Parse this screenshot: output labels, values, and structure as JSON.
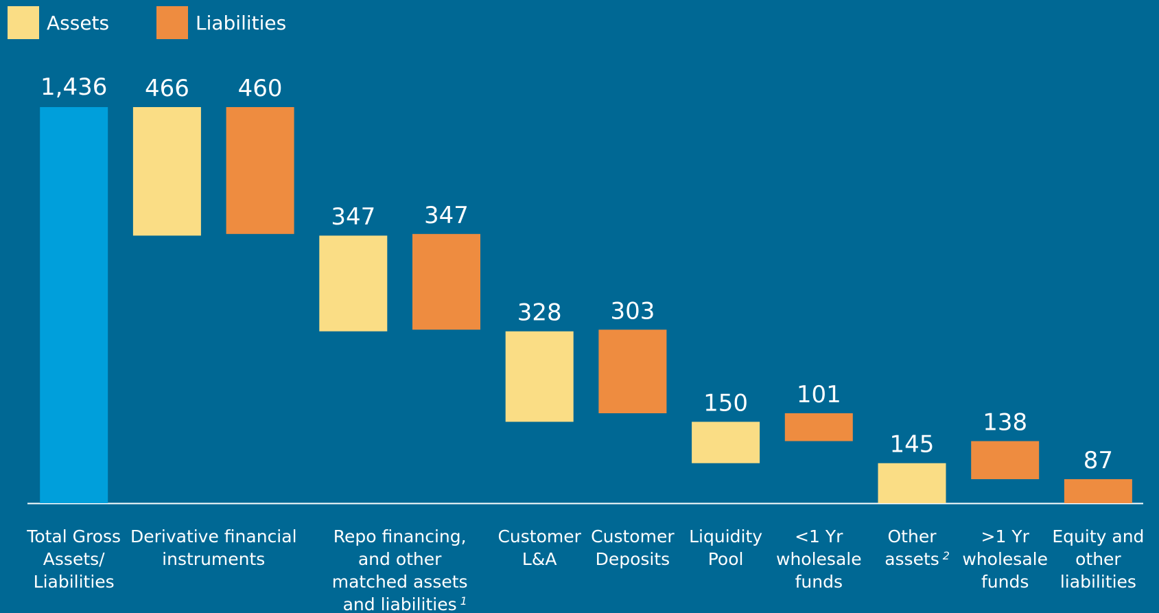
{
  "chart_data": {
    "type": "waterfall",
    "total": {
      "value": 1436,
      "value_label": "1,436",
      "color": "#009fdb"
    },
    "series": [
      {
        "name": "Assets",
        "color": "#fadd85",
        "values": [
          null,
          466,
          347,
          328,
          null,
          150,
          null,
          145,
          null,
          null
        ]
      },
      {
        "name": "Liabilities",
        "color": "#ee8c40",
        "values": [
          null,
          460,
          347,
          null,
          303,
          null,
          101,
          null,
          138,
          87
        ]
      }
    ],
    "groups": [
      {
        "label": [
          "Total Gross",
          "Assets/",
          "Liabilities"
        ]
      },
      {
        "label": [
          "Derivative financial",
          "instruments"
        ]
      },
      {
        "label": [
          "Repo financing,",
          "and other",
          "matched assets",
          "and liabilities"
        ],
        "footnote": "1"
      },
      {
        "label": [
          "Customer",
          "L&A"
        ]
      },
      {
        "label": [
          "Customer",
          "Deposits"
        ]
      },
      {
        "label": [
          "Liquidity",
          "Pool"
        ]
      },
      {
        "label": [
          "<1 Yr",
          "wholesale",
          "funds"
        ]
      },
      {
        "label": [
          "Other",
          "assets"
        ],
        "footnote": "2"
      },
      {
        "label": [
          ">1 Yr",
          "wholesale",
          "funds"
        ]
      },
      {
        "label": [
          "Equity and",
          "other",
          "liabilities"
        ]
      }
    ]
  }
}
